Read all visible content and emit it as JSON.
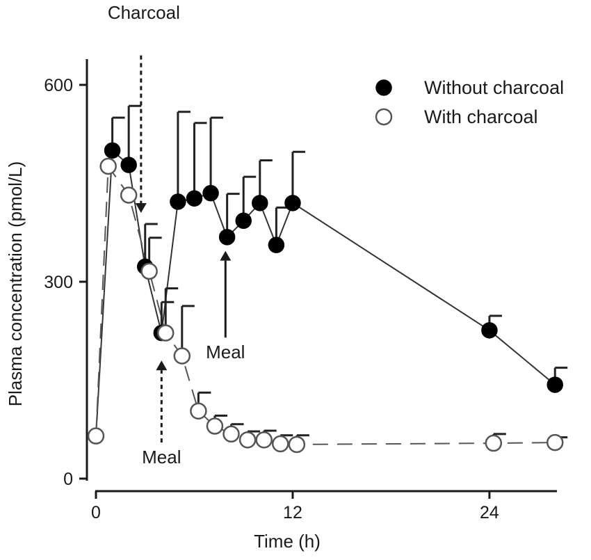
{
  "chart_data": {
    "type": "line",
    "title": "",
    "xlabel": "Time (h)",
    "ylabel": "Plasma concentration (pmol/L)",
    "xlim": [
      -0.5,
      29
    ],
    "ylim": [
      0,
      645
    ],
    "x_ticks": [
      0,
      12,
      24
    ],
    "x_tick_labels": [
      "0",
      "12",
      "24"
    ],
    "y_ticks": [
      0,
      300,
      600
    ],
    "y_tick_labels": [
      "0",
      "300",
      "600"
    ],
    "grid": false,
    "legend_position": "top-right",
    "series": [
      {
        "name": "Without charcoal",
        "marker": "filled-circle",
        "line_style": "solid",
        "color": "#000000",
        "points": [
          {
            "x": 0,
            "y": 65,
            "err": 0
          },
          {
            "x": 1,
            "y": 500,
            "err": 50
          },
          {
            "x": 2,
            "y": 478,
            "err": 90
          },
          {
            "x": 3,
            "y": 323,
            "err": 65
          },
          {
            "x": 4,
            "y": 222,
            "err": 47
          },
          {
            "x": 5,
            "y": 422,
            "err": 137
          },
          {
            "x": 6,
            "y": 427,
            "err": 115
          },
          {
            "x": 7,
            "y": 435,
            "err": 115
          },
          {
            "x": 8,
            "y": 368,
            "err": 66
          },
          {
            "x": 9,
            "y": 393,
            "err": 67
          },
          {
            "x": 10,
            "y": 420,
            "err": 65
          },
          {
            "x": 11,
            "y": 356,
            "err": 57
          },
          {
            "x": 12,
            "y": 420,
            "err": 78
          },
          {
            "x": 24,
            "y": 226,
            "err": 22
          },
          {
            "x": 28,
            "y": 143,
            "err": 26
          }
        ]
      },
      {
        "name": "With charcoal",
        "marker": "open-circle",
        "line_style": "dashed",
        "color": "#555555",
        "points": [
          {
            "x": 0,
            "y": 65,
            "err": 0
          },
          {
            "x": 0.75,
            "y": 476,
            "err": 0
          },
          {
            "x": 2,
            "y": 432,
            "err": 0
          },
          {
            "x": 3.25,
            "y": 316,
            "err": 51
          },
          {
            "x": 4.25,
            "y": 222,
            "err": 68
          },
          {
            "x": 5.25,
            "y": 187,
            "err": 76
          },
          {
            "x": 6.25,
            "y": 103,
            "err": 28
          },
          {
            "x": 7.25,
            "y": 80,
            "err": 16
          },
          {
            "x": 8.25,
            "y": 68,
            "err": 15
          },
          {
            "x": 9.25,
            "y": 59,
            "err": 13
          },
          {
            "x": 10.25,
            "y": 59,
            "err": 14
          },
          {
            "x": 11.25,
            "y": 53,
            "err": 13
          },
          {
            "x": 12.25,
            "y": 52,
            "err": 14
          },
          {
            "x": 24.25,
            "y": 54,
            "err": 14
          },
          {
            "x": 28,
            "y": 55,
            "err": 8
          }
        ]
      }
    ],
    "annotations": [
      {
        "text": "Charcoal",
        "x": 2.75,
        "from_y": 645,
        "to_y": 405,
        "style": "dashed",
        "direction": "down"
      },
      {
        "text": "Meal",
        "x": 4,
        "from_y": 55,
        "to_y": 180,
        "style": "dashed",
        "direction": "up"
      },
      {
        "text": "Meal",
        "x": 7.9,
        "from_y": 215,
        "to_y": 347,
        "style": "solid",
        "direction": "up"
      }
    ]
  }
}
